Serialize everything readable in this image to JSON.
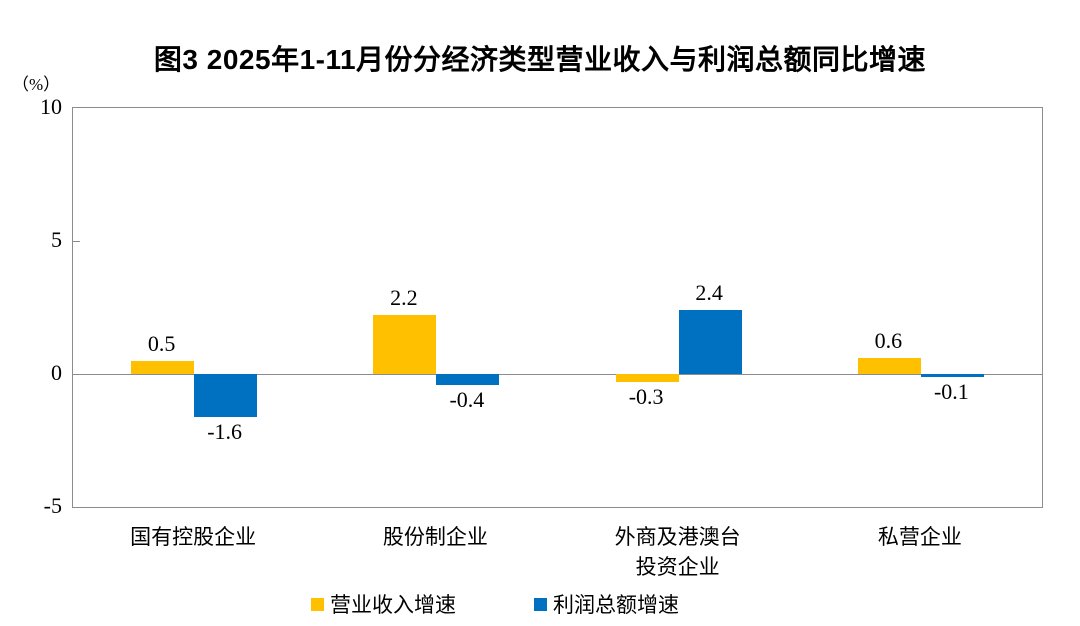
{
  "title": "图3  2025年1-11月份分经济类型营业收入与利润总额同比增速",
  "chart_data": {
    "type": "bar",
    "title": "图3  2025年1-11月份分经济类型营业收入与利润总额同比增速",
    "ylabel": "（%）",
    "categories": [
      "国有控股企业",
      "股份制企业",
      "外商及港澳台\n投资企业",
      "私营企业"
    ],
    "series": [
      {
        "name": "营业收入增速",
        "color": "#FFC000",
        "values": [
          0.5,
          2.2,
          -0.3,
          0.6
        ]
      },
      {
        "name": "利润总额增速",
        "color": "#0070C0",
        "values": [
          -1.6,
          -0.4,
          2.4,
          -0.1
        ]
      }
    ],
    "data_labels": {
      "营业收入增速": [
        "0.5",
        "2.2",
        "-0.3",
        "0.6"
      ],
      "利润总额增速": [
        "-1.6",
        "-0.4",
        "2.4",
        "-0.1"
      ]
    },
    "ylim": [
      -5,
      10
    ],
    "yticks": [
      10,
      5,
      0,
      -5
    ],
    "grid": false,
    "legend_position": "bottom",
    "axis_color": "#8c8c8c"
  }
}
